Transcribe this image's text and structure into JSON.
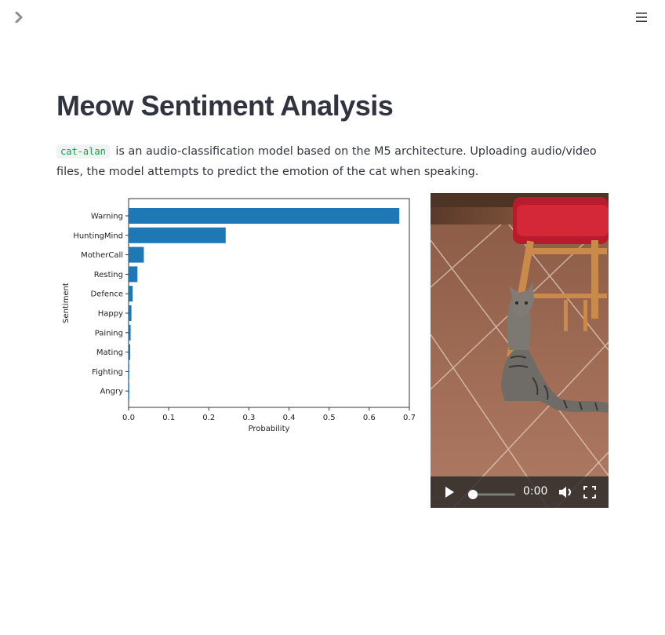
{
  "header": {
    "sidebar_icon": "chevron-right-icon",
    "menu_icon": "hamburger-menu-icon"
  },
  "page": {
    "title": "Meow Sentiment Analysis",
    "code_tag": "cat-alan",
    "description": " is an audio-classification model based on the M5 architecture. Uploading audio/video files, the model attempts to predict the emotion of the cat when speaking."
  },
  "chart_data": {
    "type": "bar",
    "orientation": "horizontal",
    "categories": [
      "Warning",
      "HuntingMind",
      "MotherCall",
      "Resting",
      "Defence",
      "Happy",
      "Paining",
      "Mating",
      "Fighting",
      "Angry"
    ],
    "values": [
      0.675,
      0.242,
      0.038,
      0.022,
      0.01,
      0.007,
      0.005,
      0.004,
      0.001,
      0.001
    ],
    "xlabel": "Probability",
    "ylabel": "Sentiment",
    "xlim": [
      0,
      0.7
    ],
    "xticks": [
      "0.0",
      "0.1",
      "0.2",
      "0.3",
      "0.4",
      "0.5",
      "0.6",
      "0.7"
    ],
    "bar_color": "#1f77b4",
    "grid": false
  },
  "video": {
    "time": "0:00",
    "progress": 0,
    "play_icon": "play-icon",
    "volume_icon": "volume-icon",
    "fullscreen_icon": "fullscreen-icon"
  }
}
